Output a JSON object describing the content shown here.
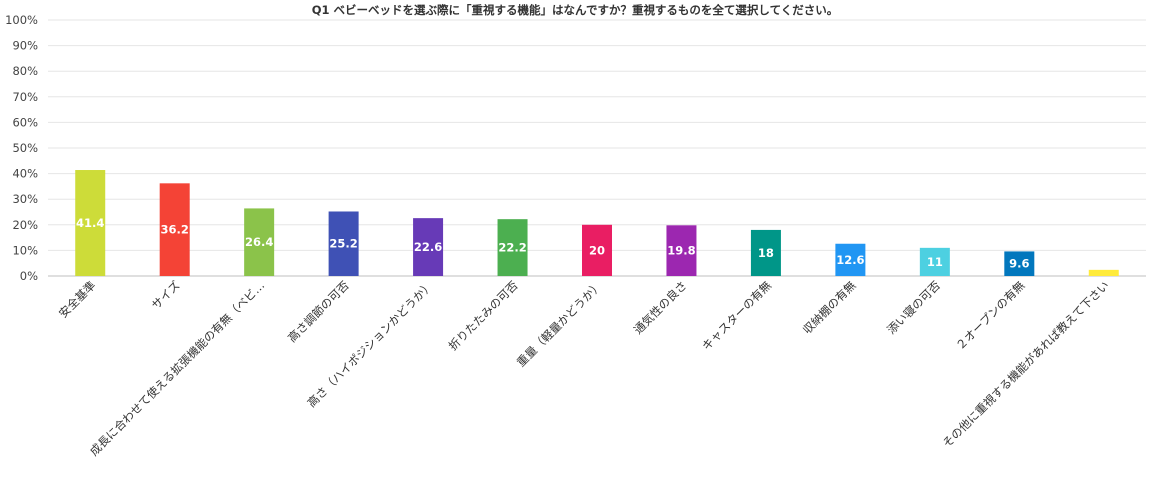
{
  "chart_data": {
    "type": "bar",
    "title": "Q1 ベビーベッドを選ぶ際に「重視する機能」はなんですか？重視するものを全て選択してください。",
    "xlabel": "",
    "ylabel": "",
    "ylim": [
      0,
      100
    ],
    "ytick_labels": [
      "0%",
      "10%",
      "20%",
      "30%",
      "40%",
      "50%",
      "60%",
      "70%",
      "80%",
      "90%",
      "100%"
    ],
    "categories": [
      "安全基準",
      "サイズ",
      "成長に合わせて使える拡張機能の有無（ベビ…",
      "高さ調節の可否",
      "高さ（ハイポジションかどうか）",
      "折りたたみの可否",
      "重量（軽量かどうか）",
      "通気性の良さ",
      "キャスターの有無",
      "収納棚の有無",
      "添い寝の可否",
      "２オープンの有無",
      "その他に重視する機能があれば教えて下さい"
    ],
    "values": [
      41.4,
      36.2,
      26.4,
      25.2,
      22.6,
      22.2,
      20,
      19.8,
      18,
      12.6,
      11,
      9.6,
      2.4
    ],
    "data_labels": [
      "41.4",
      "36.2",
      "26.4",
      "25.2",
      "22.6",
      "22.2",
      "20",
      "19.8",
      "18",
      "12.6",
      "11",
      "9.6",
      ""
    ],
    "colors": [
      "#cddc39",
      "#f44336",
      "#8bc34a",
      "#3f51b5",
      "#673ab7",
      "#4caf50",
      "#e91e63",
      "#9c27b0",
      "#009688",
      "#2196f3",
      "#4dd0e1",
      "#0277bd",
      "#ffeb3b"
    ],
    "grid": true,
    "legend": "none"
  }
}
